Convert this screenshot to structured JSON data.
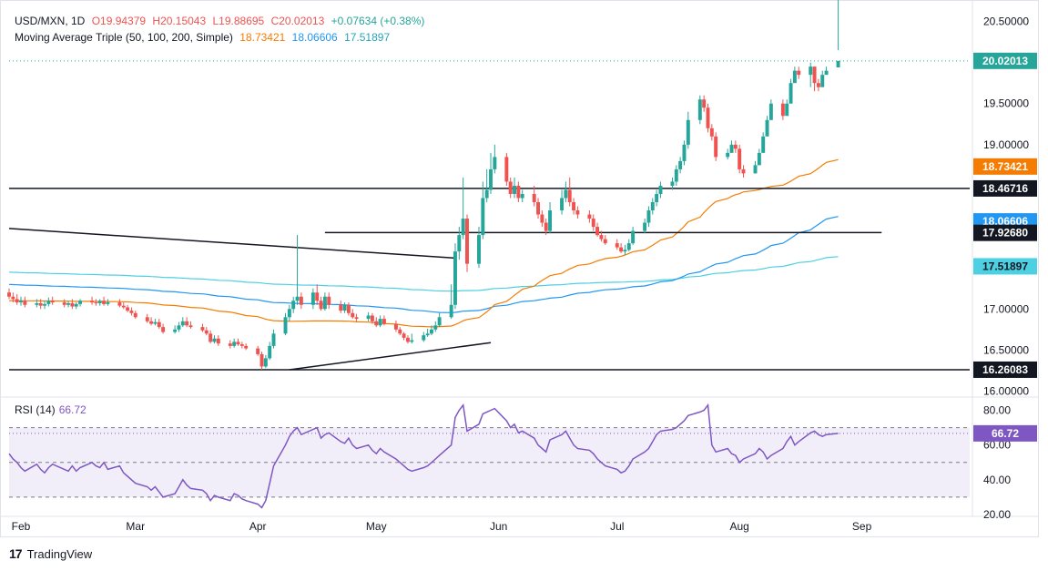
{
  "legend": {
    "symbol": "USD/MXN, 1D",
    "open": "O19.94379",
    "high": "H20.15043",
    "low": "L19.88695",
    "close": "C20.02013",
    "change": "+0.07634 (+0.38%)",
    "ma_title": "Moving Average Triple (50, 100, 200, Simple)",
    "ma50": "18.73421",
    "ma100": "18.06606",
    "ma200": "17.51897"
  },
  "rsi": {
    "title": "RSI (14)",
    "value": "66.72"
  },
  "brand": {
    "name": "TradingView"
  },
  "colors": {
    "up": "#26a69a",
    "down": "#ef5350",
    "ma50": "#f57c00",
    "ma100": "#2196f3",
    "ma200": "#4dd0e1",
    "rsi": "#7e57c2"
  },
  "chart_data": {
    "type": "candlestick",
    "x_labels": [
      "Feb",
      "Mar",
      "Apr",
      "May",
      "Jun",
      "Jul",
      "Aug",
      "Sep"
    ],
    "y_ticks": [
      "20.50000",
      "19.50000",
      "19.00000",
      "17.00000",
      "16.50000",
      "16.00000"
    ],
    "ylim": [
      15.95,
      20.65
    ],
    "price_labels": [
      {
        "value": 20.02013,
        "text": "20.02013",
        "color": "#26a69a",
        "text_color": "#ffffff"
      },
      {
        "value": 18.73421,
        "text": "18.73421",
        "color": "#f57c00",
        "text_color": "#ffffff"
      },
      {
        "value": 18.46716,
        "text": "18.46716",
        "color": "#131722",
        "text_color": "#ffffff"
      },
      {
        "value": 18.06606,
        "text": "18.06606",
        "color": "#2196f3",
        "text_color": "#ffffff"
      },
      {
        "value": 17.9268,
        "text": "17.92680",
        "color": "#131722",
        "text_color": "#ffffff"
      },
      {
        "value": 17.51897,
        "text": "17.51897",
        "color": "#4dd0e1",
        "text_color": "#131722"
      },
      {
        "value": 16.26083,
        "text": "16.26083",
        "color": "#131722",
        "text_color": "#ffffff"
      }
    ],
    "horizontal_lines": [
      18.46716,
      16.26083
    ],
    "segments": [
      {
        "from": [
          "2024-01-29",
          17.98
        ],
        "to": [
          "2024-05-21",
          17.62
        ]
      },
      {
        "from": [
          "2024-04-09",
          16.26
        ],
        "to": [
          "2024-05-30",
          16.59
        ]
      },
      {
        "from": [
          "2024-04-18",
          17.93
        ],
        "to": [
          "2024-09-06",
          17.93
        ]
      }
    ],
    "closes": [
      17.15,
      17.12,
      17.08,
      17.1,
      17.05,
      17.07,
      17.04,
      17.06,
      17.1,
      17.08,
      17.05,
      17.07,
      17.03,
      17.06,
      17.1,
      17.08,
      17.07,
      17.1,
      17.06,
      17.08,
      17.04,
      17.02,
      16.98,
      16.95,
      16.9,
      16.85,
      16.82,
      16.84,
      16.78,
      16.72,
      16.75,
      16.8,
      16.85,
      16.8,
      16.78,
      16.74,
      16.7,
      16.6,
      16.64,
      16.58,
      16.55,
      16.6,
      16.57,
      16.55,
      16.52,
      16.45,
      16.3,
      16.4,
      16.55,
      16.7,
      16.9,
      17.0,
      17.1,
      17.15,
      17.05,
      17.2,
      17.1,
      17.0,
      17.15,
      17.05,
      16.98,
      17.05,
      16.95,
      16.9,
      16.88,
      16.92,
      16.85,
      16.8,
      16.88,
      16.82,
      16.75,
      16.7,
      16.65,
      16.6,
      16.62,
      16.68,
      16.7,
      16.75,
      16.8,
      16.9,
      17.05,
      17.7,
      17.9,
      18.1,
      17.55,
      17.9,
      18.35,
      18.45,
      18.7,
      18.85,
      18.55,
      18.4,
      18.5,
      18.35,
      18.4,
      18.3,
      18.15,
      18.05,
      17.95,
      18.2,
      18.35,
      18.45,
      18.3,
      18.2,
      18.15,
      18.1,
      18.0,
      17.9,
      17.85,
      17.8,
      17.75,
      17.7,
      17.72,
      17.8,
      17.95,
      18.05,
      18.2,
      18.3,
      18.4,
      18.5,
      18.55,
      18.7,
      18.8,
      19.0,
      19.3,
      19.55,
      19.45,
      19.2,
      19.1,
      18.85,
      18.9,
      19.0,
      18.95,
      18.7,
      18.65,
      18.75,
      18.9,
      19.1,
      19.3,
      19.5,
      19.35,
      19.5,
      19.75,
      19.9,
      19.85,
      19.95,
      19.75,
      19.7,
      19.85,
      19.9,
      20.02
    ],
    "opens": [
      17.2,
      17.15,
      17.12,
      17.08,
      17.1,
      17.05,
      17.07,
      17.04,
      17.06,
      17.1,
      17.08,
      17.05,
      17.07,
      17.03,
      17.06,
      17.1,
      17.08,
      17.07,
      17.1,
      17.06,
      17.08,
      17.04,
      17.02,
      16.98,
      16.95,
      16.9,
      16.85,
      16.82,
      16.84,
      16.78,
      16.72,
      16.75,
      16.8,
      16.85,
      16.8,
      16.78,
      16.74,
      16.7,
      16.6,
      16.64,
      16.58,
      16.55,
      16.6,
      16.57,
      16.55,
      16.52,
      16.45,
      16.3,
      16.4,
      16.55,
      16.7,
      16.9,
      17.0,
      17.1,
      17.15,
      17.05,
      17.2,
      17.1,
      17.0,
      17.15,
      17.05,
      16.98,
      17.05,
      16.95,
      16.9,
      16.88,
      16.92,
      16.85,
      16.8,
      16.88,
      16.82,
      16.75,
      16.7,
      16.65,
      16.6,
      16.62,
      16.68,
      16.7,
      16.75,
      16.8,
      16.9,
      17.05,
      17.7,
      17.9,
      18.1,
      17.55,
      17.9,
      18.35,
      18.45,
      18.7,
      18.85,
      18.55,
      18.4,
      18.5,
      18.35,
      18.4,
      18.3,
      18.15,
      18.05,
      17.95,
      18.2,
      18.35,
      18.45,
      18.3,
      18.2,
      18.15,
      18.1,
      18.0,
      17.9,
      17.85,
      17.8,
      17.75,
      17.7,
      17.72,
      17.8,
      17.95,
      18.05,
      18.2,
      18.3,
      18.4,
      18.5,
      18.55,
      18.7,
      18.8,
      19.0,
      19.3,
      19.55,
      19.45,
      19.2,
      19.1,
      18.85,
      18.9,
      19.0,
      18.95,
      18.7,
      18.65,
      18.75,
      18.9,
      19.1,
      19.3,
      19.5,
      19.35,
      19.5,
      19.75,
      19.9,
      19.85,
      19.95,
      19.75,
      19.7,
      19.85,
      19.94
    ],
    "highs": [
      17.25,
      17.2,
      17.18,
      17.15,
      17.15,
      17.12,
      17.12,
      17.1,
      17.14,
      17.15,
      17.12,
      17.1,
      17.12,
      17.08,
      17.12,
      17.15,
      17.12,
      17.12,
      17.15,
      17.12,
      17.12,
      17.08,
      17.05,
      17.02,
      16.98,
      16.94,
      16.9,
      16.88,
      16.88,
      16.82,
      16.8,
      16.84,
      16.9,
      16.9,
      16.85,
      16.82,
      16.78,
      16.74,
      16.68,
      16.68,
      16.62,
      16.64,
      16.64,
      16.6,
      16.58,
      16.55,
      16.48,
      16.44,
      16.6,
      16.75,
      16.95,
      17.05,
      17.15,
      17.9,
      17.2,
      17.25,
      17.3,
      17.15,
      17.2,
      17.2,
      17.1,
      17.08,
      17.08,
      17.0,
      16.94,
      16.96,
      16.95,
      16.9,
      16.92,
      16.92,
      16.86,
      16.78,
      16.72,
      16.68,
      16.7,
      16.72,
      16.76,
      16.8,
      16.85,
      16.95,
      17.3,
      17.8,
      18.0,
      18.6,
      18.15,
      18.0,
      18.55,
      18.7,
      18.9,
      19.0,
      18.9,
      18.6,
      18.6,
      18.55,
      18.45,
      18.5,
      18.35,
      18.2,
      18.1,
      18.3,
      18.45,
      18.55,
      18.6,
      18.35,
      18.25,
      18.2,
      18.15,
      18.05,
      17.95,
      17.9,
      17.85,
      17.8,
      17.78,
      17.85,
      18.0,
      18.1,
      18.25,
      18.35,
      18.45,
      18.55,
      18.6,
      18.75,
      18.85,
      19.05,
      19.4,
      19.6,
      19.6,
      19.5,
      19.25,
      19.15,
      18.95,
      19.05,
      19.05,
      19.0,
      18.75,
      18.8,
      18.95,
      19.15,
      19.35,
      19.55,
      19.55,
      19.55,
      19.8,
      19.95,
      19.95,
      20.0,
      19.95,
      19.8,
      19.9,
      19.95,
      20.15
    ],
    "lows": [
      17.12,
      17.08,
      17.05,
      17.04,
      17.02,
      17.02,
      17.0,
      17.0,
      17.03,
      17.05,
      17.02,
      17.02,
      17.0,
      17.0,
      17.03,
      17.05,
      17.04,
      17.04,
      17.04,
      17.04,
      17.02,
      17.0,
      16.96,
      16.92,
      16.88,
      16.83,
      16.8,
      16.8,
      16.76,
      16.7,
      16.7,
      16.72,
      16.78,
      16.78,
      16.76,
      16.72,
      16.68,
      16.58,
      16.58,
      16.55,
      16.52,
      16.53,
      16.55,
      16.52,
      16.5,
      16.43,
      16.26,
      16.28,
      16.38,
      16.52,
      16.68,
      16.85,
      16.95,
      17.05,
      17.0,
      17.0,
      17.05,
      16.98,
      16.98,
      17.0,
      16.95,
      16.95,
      16.92,
      16.88,
      16.85,
      16.85,
      16.82,
      16.78,
      16.78,
      16.8,
      16.72,
      16.68,
      16.62,
      16.58,
      16.58,
      16.6,
      16.66,
      16.68,
      16.72,
      16.78,
      16.88,
      17.0,
      17.6,
      17.85,
      17.45,
      17.5,
      17.85,
      18.3,
      18.4,
      18.65,
      18.5,
      18.35,
      18.35,
      18.3,
      18.3,
      18.25,
      18.1,
      18.0,
      17.9,
      17.92,
      18.15,
      18.3,
      18.25,
      18.15,
      18.1,
      18.05,
      17.95,
      17.88,
      17.82,
      17.78,
      17.72,
      17.68,
      17.66,
      17.7,
      17.78,
      17.92,
      18.0,
      18.15,
      18.25,
      18.35,
      18.45,
      18.5,
      18.65,
      18.75,
      18.95,
      19.25,
      19.4,
      19.15,
      19.05,
      18.8,
      18.82,
      18.92,
      18.9,
      18.65,
      18.6,
      18.7,
      18.85,
      19.05,
      19.25,
      19.3,
      19.3,
      19.45,
      19.7,
      19.8,
      19.8,
      19.7,
      19.65,
      19.65,
      19.8,
      19.89
    ]
  },
  "rsi_data": {
    "y_ticks": [
      "80.00",
      "60.00",
      "40.00",
      "20.00"
    ],
    "ylim": [
      20,
      85
    ],
    "band": [
      30,
      70
    ],
    "values": [
      55,
      52,
      50,
      47,
      45,
      49,
      46,
      44,
      47,
      49,
      46,
      45,
      48,
      45,
      47,
      50,
      48,
      47,
      50,
      46,
      48,
      44,
      42,
      40,
      38,
      36,
      34,
      36,
      33,
      30,
      32,
      36,
      40,
      37,
      35,
      34,
      32,
      28,
      31,
      30,
      28,
      32,
      31,
      29,
      28,
      26,
      24,
      28,
      38,
      48,
      60,
      65,
      68,
      70,
      66,
      69,
      70,
      64,
      66,
      67,
      62,
      61,
      64,
      60,
      58,
      60,
      57,
      55,
      58,
      56,
      52,
      50,
      48,
      46,
      45,
      47,
      48,
      50,
      52,
      54,
      60,
      76,
      80,
      83,
      68,
      72,
      78,
      79,
      80,
      81,
      74,
      70,
      72,
      67,
      68,
      64,
      60,
      58,
      56,
      63,
      66,
      68,
      64,
      60,
      58,
      57,
      55,
      52,
      50,
      48,
      46,
      44,
      45,
      48,
      52,
      56,
      58,
      62,
      66,
      68,
      69,
      70,
      72,
      74,
      77,
      79,
      80,
      83,
      60,
      56,
      58,
      55,
      54,
      50,
      52,
      55,
      58,
      56,
      52,
      54,
      58,
      62,
      65,
      60,
      62,
      67,
      68,
      66,
      65,
      66,
      66.72
    ]
  }
}
